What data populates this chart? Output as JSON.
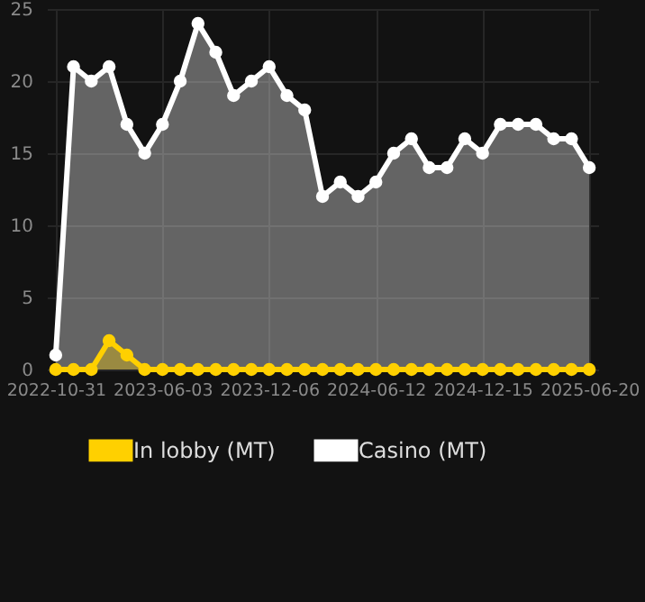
{
  "chart_data": {
    "type": "area",
    "categories": [
      "2022-10-31",
      null,
      null,
      null,
      null,
      null,
      "2023-06-03",
      null,
      null,
      null,
      null,
      null,
      "2023-12-06",
      null,
      null,
      null,
      null,
      null,
      "2024-06-12",
      null,
      null,
      null,
      null,
      null,
      "2024-12-15",
      null,
      null,
      null,
      null,
      null,
      "2025-06-20"
    ],
    "series": [
      {
        "name": "In lobby (MT)",
        "color": "#ffd000",
        "values": [
          0,
          0,
          0,
          2,
          1,
          0,
          0,
          0,
          0,
          0,
          0,
          0,
          0,
          0,
          0,
          0,
          0,
          0,
          0,
          0,
          0,
          0,
          0,
          0,
          0,
          0,
          0,
          0,
          0,
          0,
          0
        ]
      },
      {
        "name": "Casino (MT)",
        "color": "#ffffff",
        "values": [
          1,
          21,
          20,
          21,
          17,
          15,
          17,
          20,
          24,
          22,
          19,
          20,
          21,
          19,
          18,
          12,
          13,
          12,
          13,
          15,
          16,
          14,
          14,
          16,
          15,
          17,
          17,
          17,
          16,
          16,
          14
        ]
      }
    ],
    "ylim": [
      0,
      25
    ],
    "yticks": [
      0,
      5,
      10,
      15,
      20,
      25
    ],
    "grid": true,
    "legend": "bottom",
    "marker": "circle",
    "line_style": "solid"
  }
}
